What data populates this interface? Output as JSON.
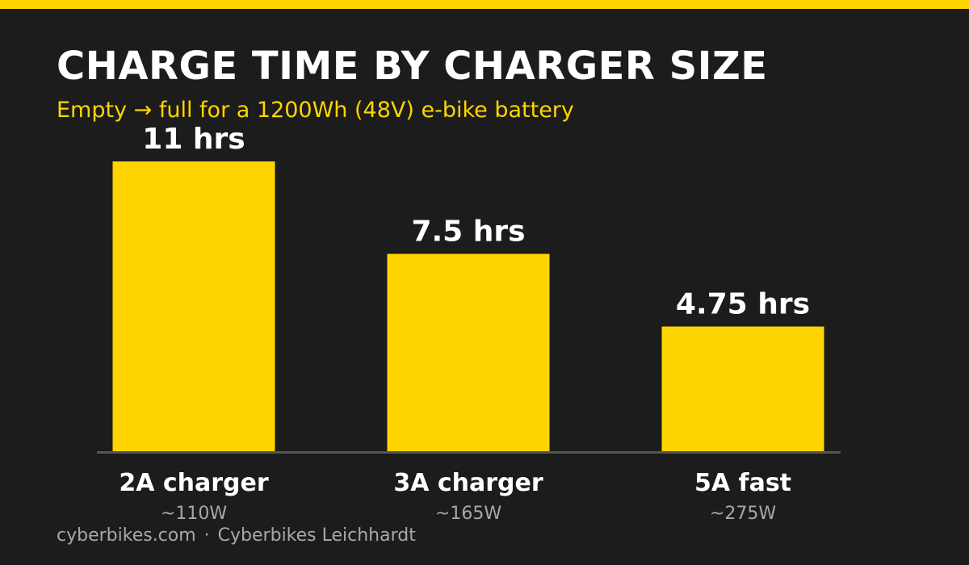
{
  "title": "CHARGE TIME BY CHARGER SIZE",
  "subtitle": "Empty → full for a 1200Wh (48V) e-bike battery",
  "footer": {
    "site": "cyberbikes.com",
    "separator": "·",
    "store": "Cyberbikes Leichhardt"
  },
  "colors": {
    "accent": "#ffd500",
    "background": "#1c1c1c",
    "text": "#ffffff",
    "muted": "#a8a8a8",
    "baseline": "#555555"
  },
  "chart_data": {
    "type": "bar",
    "title": "CHARGE TIME BY CHARGER SIZE",
    "subtitle": "Empty → full for a 1200Wh (48V) e-bike battery",
    "categories": [
      "2A charger",
      "3A charger",
      "5A fast"
    ],
    "sublabels": [
      "~110W",
      "~165W",
      "~275W"
    ],
    "values": [
      11,
      7.5,
      4.75
    ],
    "value_labels": [
      "11 hrs",
      "7.5 hrs",
      "4.75 hrs"
    ],
    "unit": "hrs",
    "ylim": [
      0,
      11
    ],
    "grid": false,
    "legend": "none"
  }
}
